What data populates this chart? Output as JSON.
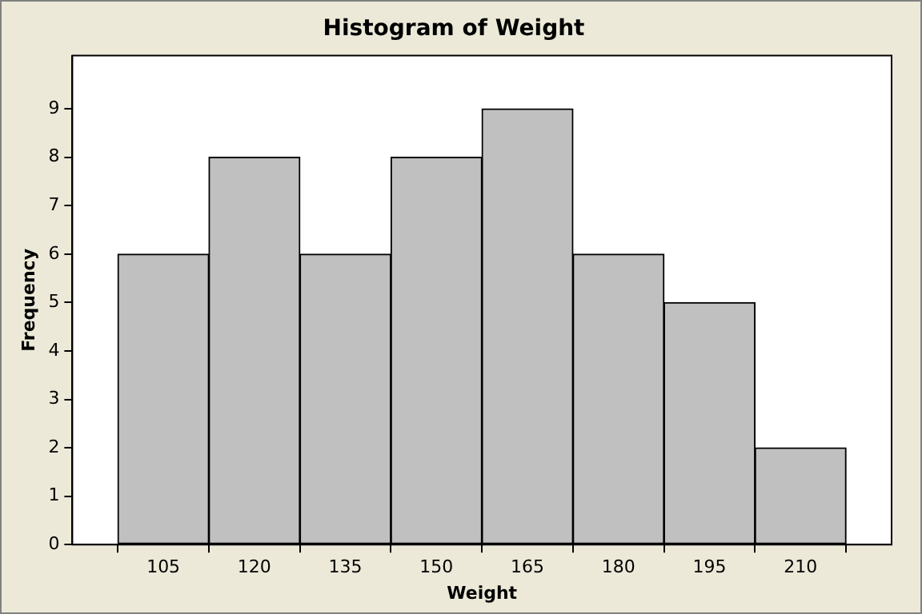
{
  "chart_data": {
    "type": "histogram",
    "title": "Histogram of Weight",
    "xlabel": "Weight",
    "ylabel": "Frequency",
    "bins": [
      97.5,
      112.5,
      127.5,
      142.5,
      157.5,
      172.5,
      187.5,
      202.5,
      217.5
    ],
    "values": [
      6,
      8,
      6,
      8,
      9,
      6,
      5,
      2
    ],
    "color": "#c0c0c0",
    "xlim": [
      90,
      225
    ],
    "xticks": [
      105,
      120,
      135,
      150,
      165,
      180,
      195,
      210
    ],
    "ylim": [
      0,
      10.1
    ],
    "yticks": [
      0,
      1,
      2,
      3,
      4,
      5,
      6,
      7,
      8,
      9
    ],
    "grid": false,
    "legend": false
  }
}
